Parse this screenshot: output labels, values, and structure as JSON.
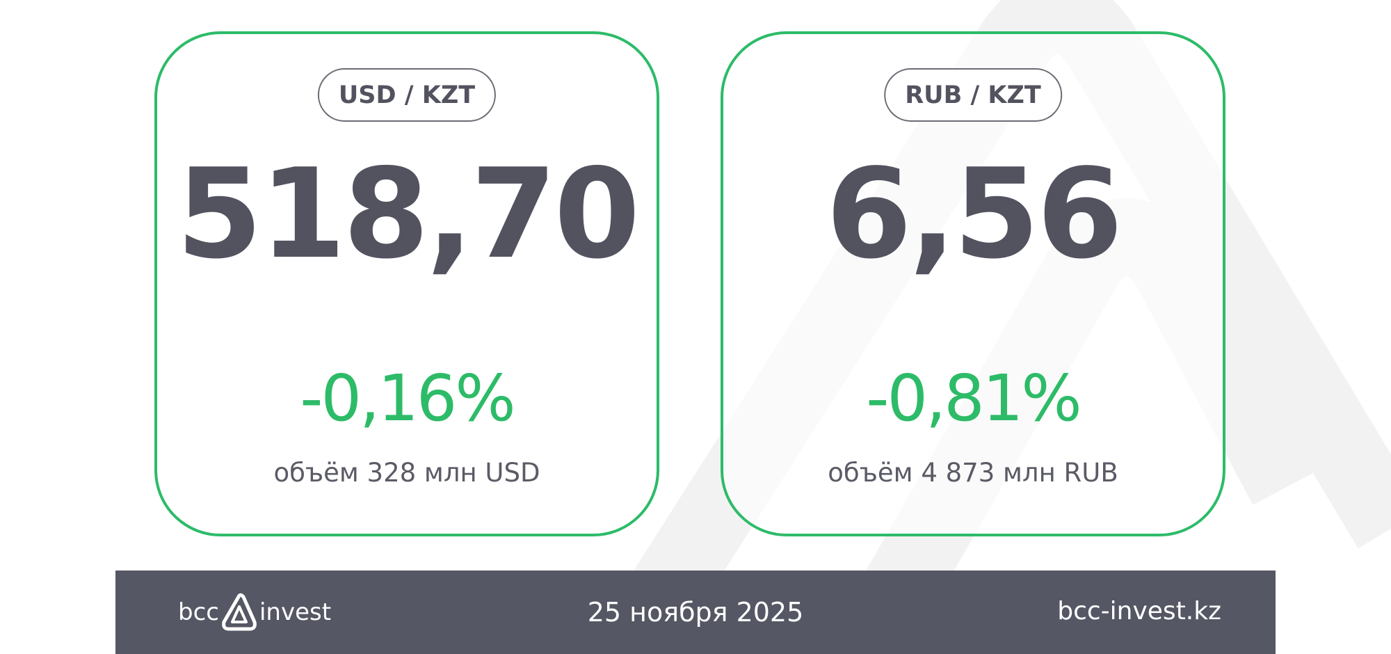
{
  "cards": [
    {
      "pair": "USD / KZT",
      "rate": "518,70",
      "change": "-0,16%",
      "volume": "объём 328 млн USD"
    },
    {
      "pair": "RUB / KZT",
      "rate": "6,56",
      "change": "-0,81%",
      "volume": "объём 4 873 млн RUB"
    }
  ],
  "footer": {
    "logo_left": "bcc",
    "logo_right": "invest",
    "date": "25 ноября 2025",
    "website": "bcc-invest.kz"
  },
  "colors": {
    "accent": "#2dbb68",
    "text": "#52535f",
    "footer_bg": "#555764"
  }
}
